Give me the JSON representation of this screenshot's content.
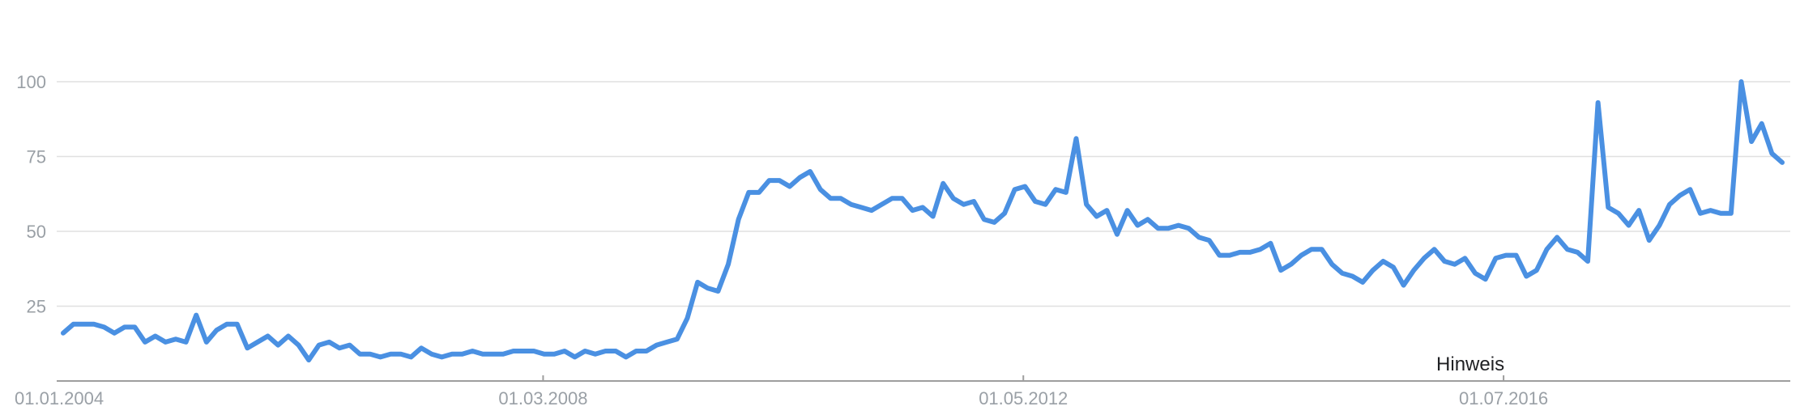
{
  "chart_data": {
    "type": "line",
    "title": "",
    "xlabel": "",
    "ylabel": "",
    "x_range": [
      "2004-01-01",
      "2018-12-01"
    ],
    "ylim": [
      0,
      100
    ],
    "y_ticks": [
      25,
      50,
      75,
      100
    ],
    "x_ticks": [
      {
        "date": "2004-01-01",
        "label": "01.01.2004"
      },
      {
        "date": "2008-03-01",
        "label": "01.03.2008"
      },
      {
        "date": "2012-05-01",
        "label": "01.05.2012"
      },
      {
        "date": "2016-07-01",
        "label": "01.07.2016"
      }
    ],
    "grid": true,
    "legend": "none",
    "series_color": "#4a90e2",
    "annotation": {
      "text": "Hinweis",
      "date": "2016-07-01"
    },
    "series": [
      {
        "values": [
          16,
          19,
          19,
          19,
          18,
          16,
          18,
          18,
          13,
          15,
          13,
          14,
          13,
          22,
          13,
          17,
          19,
          19,
          11,
          13,
          15,
          12,
          15,
          12,
          7,
          12,
          13,
          11,
          12,
          9,
          9,
          8,
          9,
          9,
          8,
          11,
          9,
          8,
          9,
          9,
          10,
          9,
          9,
          9,
          10,
          10,
          10,
          9,
          9,
          10,
          8,
          10,
          9,
          10,
          10,
          8,
          10,
          10,
          12,
          13,
          14,
          21,
          33,
          31,
          30,
          39,
          54,
          63,
          63,
          67,
          67,
          65,
          68,
          70,
          64,
          61,
          61,
          59,
          58,
          57,
          59,
          61,
          61,
          57,
          58,
          55,
          66,
          61,
          59,
          60,
          54,
          53,
          56,
          64,
          65,
          60,
          59,
          64,
          63,
          81,
          59,
          55,
          57,
          49,
          57,
          52,
          54,
          51,
          51,
          52,
          51,
          48,
          47,
          42,
          42,
          43,
          43,
          44,
          46,
          37,
          39,
          42,
          44,
          44,
          39,
          36,
          35,
          33,
          37,
          40,
          38,
          32,
          37,
          41,
          44,
          40,
          39,
          41,
          36,
          34,
          41,
          42,
          42,
          35,
          37,
          44,
          48,
          44,
          43,
          40,
          93,
          58,
          56,
          52,
          57,
          47,
          52,
          59,
          62,
          64,
          56,
          57,
          56,
          56,
          100,
          80,
          86,
          76,
          73
        ]
      }
    ]
  }
}
